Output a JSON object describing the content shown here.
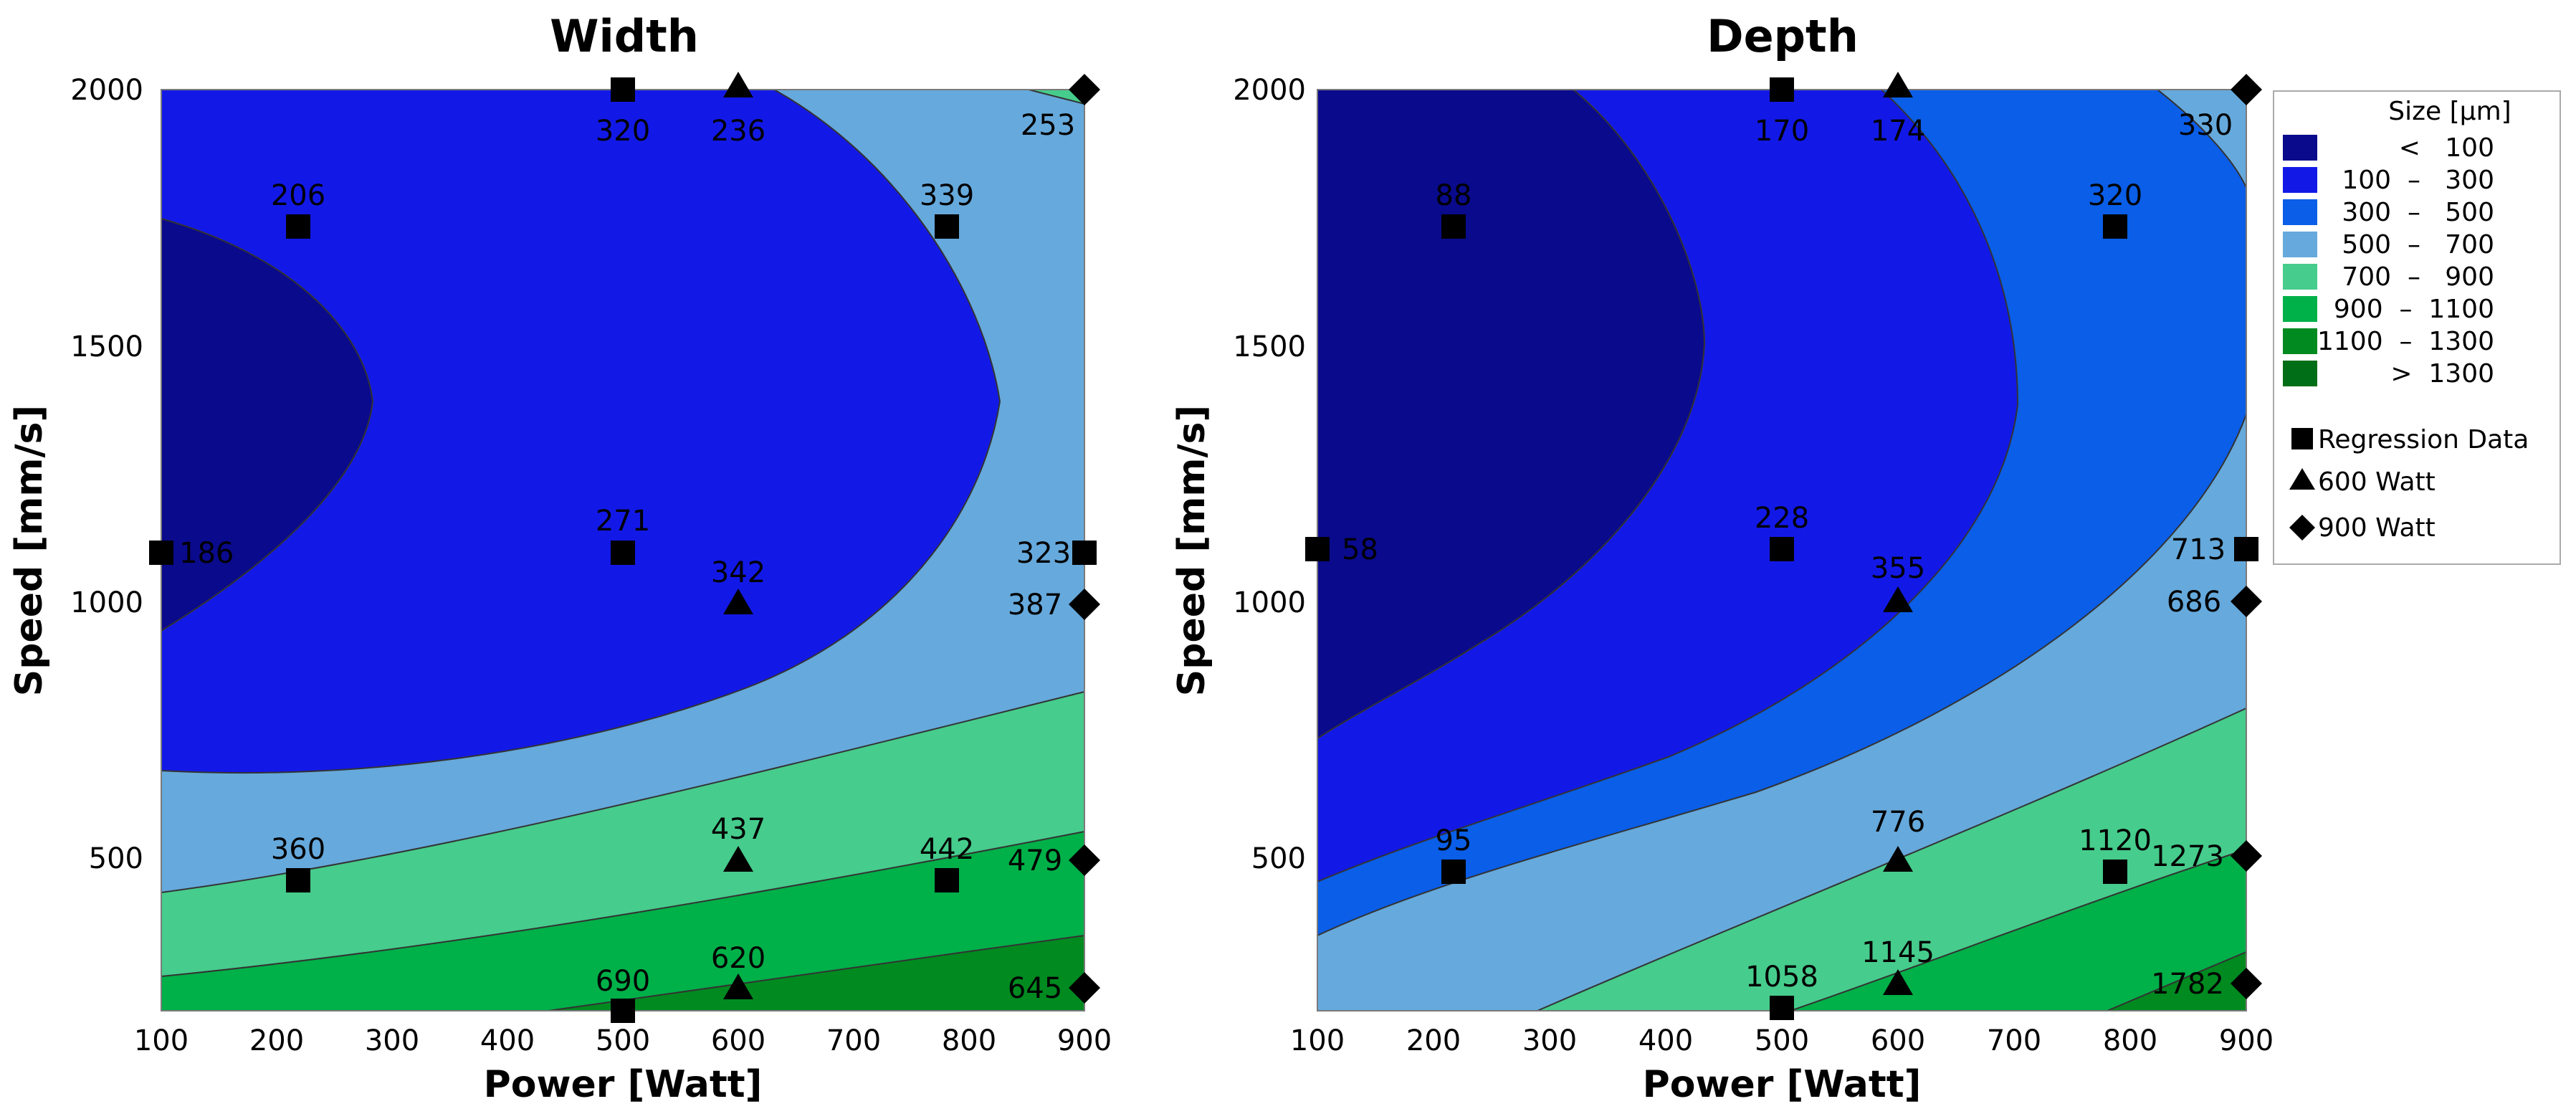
{
  "chart_data": [
    {
      "type": "contour",
      "title": "Width",
      "xlabel": "Power [Watt]",
      "ylabel": "Speed [mm/s]",
      "xlim": [
        100,
        900
      ],
      "ylim": [
        200,
        2000
      ],
      "x_ticks": [
        "100",
        "200",
        "300",
        "400",
        "500",
        "600",
        "700",
        "800",
        "900"
      ],
      "y_ticks": [
        "500",
        "1000",
        "1500",
        "2000"
      ],
      "contour_levels": [
        100,
        300,
        500,
        700,
        900,
        1100,
        1300
      ],
      "points": [
        {
          "series": "Regression Data",
          "x": 500,
          "y": 2000,
          "label": "320"
        },
        {
          "series": "600 Watt",
          "x": 600,
          "y": 2000,
          "label": "236"
        },
        {
          "series": "900 Watt",
          "x": 900,
          "y": 2000,
          "label": "253"
        },
        {
          "series": "Regression Data",
          "x": 220,
          "y": 1740,
          "label": "206"
        },
        {
          "series": "Regression Data",
          "x": 780,
          "y": 1740,
          "label": "339"
        },
        {
          "series": "Regression Data",
          "x": 100,
          "y": 1100,
          "label": "186"
        },
        {
          "series": "Regression Data",
          "x": 500,
          "y": 1100,
          "label": "271"
        },
        {
          "series": "Regression Data",
          "x": 900,
          "y": 1100,
          "label": "323"
        },
        {
          "series": "600 Watt",
          "x": 600,
          "y": 1000,
          "label": "342"
        },
        {
          "series": "900 Watt",
          "x": 900,
          "y": 1000,
          "label": "387"
        },
        {
          "series": "Regression Data",
          "x": 220,
          "y": 470,
          "label": "360"
        },
        {
          "series": "600 Watt",
          "x": 600,
          "y": 500,
          "label": "437"
        },
        {
          "series": "Regression Data",
          "x": 780,
          "y": 470,
          "label": "442"
        },
        {
          "series": "900 Watt",
          "x": 900,
          "y": 500,
          "label": "479"
        },
        {
          "series": "Regression Data",
          "x": 500,
          "y": 200,
          "label": "690"
        },
        {
          "series": "600 Watt",
          "x": 600,
          "y": 250,
          "label": "620"
        },
        {
          "series": "900 Watt",
          "x": 900,
          "y": 250,
          "label": "645"
        }
      ]
    },
    {
      "type": "contour",
      "title": "Depth",
      "xlabel": "Power [Watt]",
      "ylabel": "Speed [mm/s]",
      "xlim": [
        100,
        900
      ],
      "ylim": [
        200,
        2000
      ],
      "x_ticks": [
        "100",
        "200",
        "300",
        "400",
        "500",
        "600",
        "700",
        "800",
        "900"
      ],
      "y_ticks": [
        "500",
        "1000",
        "1500",
        "2000"
      ],
      "contour_levels": [
        100,
        300,
        500,
        700,
        900,
        1100,
        1300
      ],
      "points": [
        {
          "series": "Regression Data",
          "x": 500,
          "y": 2000,
          "label": "170"
        },
        {
          "series": "600 Watt",
          "x": 600,
          "y": 2000,
          "label": "174"
        },
        {
          "series": "900 Watt",
          "x": 900,
          "y": 2000,
          "label": "330"
        },
        {
          "series": "Regression Data",
          "x": 215,
          "y": 1740,
          "label": "88"
        },
        {
          "series": "Regression Data",
          "x": 785,
          "y": 1740,
          "label": "320"
        },
        {
          "series": "Regression Data",
          "x": 100,
          "y": 1100,
          "label": "58"
        },
        {
          "series": "Regression Data",
          "x": 500,
          "y": 1100,
          "label": "228"
        },
        {
          "series": "Regression Data",
          "x": 900,
          "y": 1100,
          "label": "713"
        },
        {
          "series": "600 Watt",
          "x": 600,
          "y": 1000,
          "label": "355"
        },
        {
          "series": "900 Watt",
          "x": 900,
          "y": 1000,
          "label": "686"
        },
        {
          "series": "Regression Data",
          "x": 215,
          "y": 470,
          "label": "95"
        },
        {
          "series": "600 Watt",
          "x": 600,
          "y": 500,
          "label": "776"
        },
        {
          "series": "Regression Data",
          "x": 785,
          "y": 470,
          "label": "1120"
        },
        {
          "series": "900 Watt",
          "x": 900,
          "y": 500,
          "label": "1273"
        },
        {
          "series": "Regression Data",
          "x": 500,
          "y": 200,
          "label": "1058"
        },
        {
          "series": "600 Watt",
          "x": 600,
          "y": 250,
          "label": "1145"
        },
        {
          "series": "900 Watt",
          "x": 900,
          "y": 250,
          "label": "1782"
        }
      ]
    }
  ],
  "legend": {
    "title": "Size [µm]",
    "bins": [
      {
        "range": "<   100",
        "color": "#0a0a8c"
      },
      {
        "range": "100  –   300",
        "color": "#1219e6"
      },
      {
        "range": "300  –   500",
        "color": "#0a5ee8"
      },
      {
        "range": "500  –   700",
        "color": "#66a9dc"
      },
      {
        "range": "700  –   900",
        "color": "#46cc8c"
      },
      {
        "range": "900  –  1100",
        "color": "#00b048"
      },
      {
        "range": "1100  –  1300",
        "color": "#008a20"
      },
      {
        "range": ">  1300",
        "color": "#006e16"
      }
    ],
    "markers": [
      {
        "shape": "square",
        "label": "Regression Data"
      },
      {
        "shape": "triangle",
        "label": "600 Watt"
      },
      {
        "shape": "diamond",
        "label": "900 Watt"
      }
    ]
  }
}
